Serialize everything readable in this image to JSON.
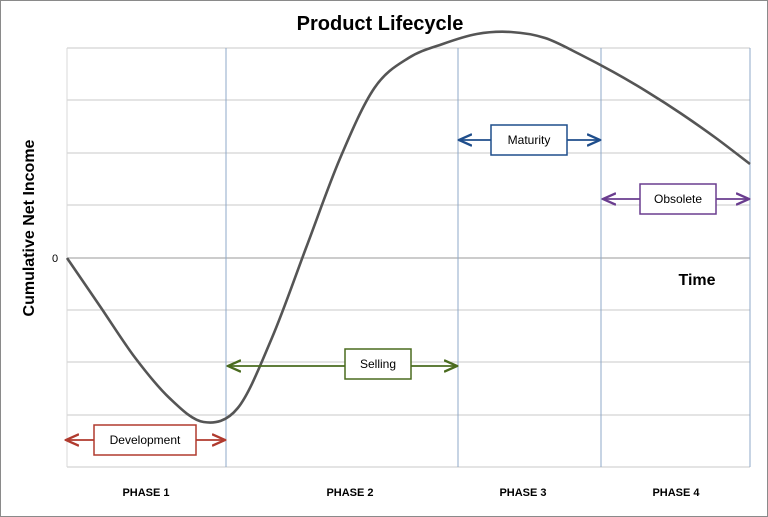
{
  "chart_data": {
    "type": "line",
    "title": "Product Lifecycle",
    "xlabel": "Time",
    "ylabel": "Cumulative Net Income",
    "y_tick_labels": [
      "0"
    ],
    "grid": true,
    "phases": [
      "PHASE 1",
      "PHASE 2",
      "PHASE 3",
      "PHASE 4"
    ],
    "series": [
      {
        "color": "#555555",
        "x": [
          0,
          0.05,
          0.1,
          0.15,
          0.2,
          0.25,
          0.3,
          0.35,
          0.4,
          0.45,
          0.5,
          0.55,
          0.6,
          0.65,
          0.7,
          0.75,
          0.8,
          0.85,
          0.9,
          0.95,
          1.0
        ],
        "y": [
          0,
          -0.25,
          -0.5,
          -0.7,
          -0.82,
          -0.75,
          -0.4,
          0.05,
          0.5,
          0.85,
          1.0,
          1.07,
          1.12,
          1.13,
          1.1,
          1.02,
          0.93,
          0.83,
          0.72,
          0.6,
          0.47
        ]
      }
    ],
    "annotations": [
      {
        "label": "Development",
        "phase": 1,
        "color": "#b03a2e"
      },
      {
        "label": "Selling",
        "phase": 2,
        "color": "#4a6b1f"
      },
      {
        "label": "Maturity",
        "phase": 3,
        "color": "#1f4e8c"
      },
      {
        "label": "Obsolete",
        "phase": 4,
        "color": "#6a3d8f"
      }
    ]
  }
}
